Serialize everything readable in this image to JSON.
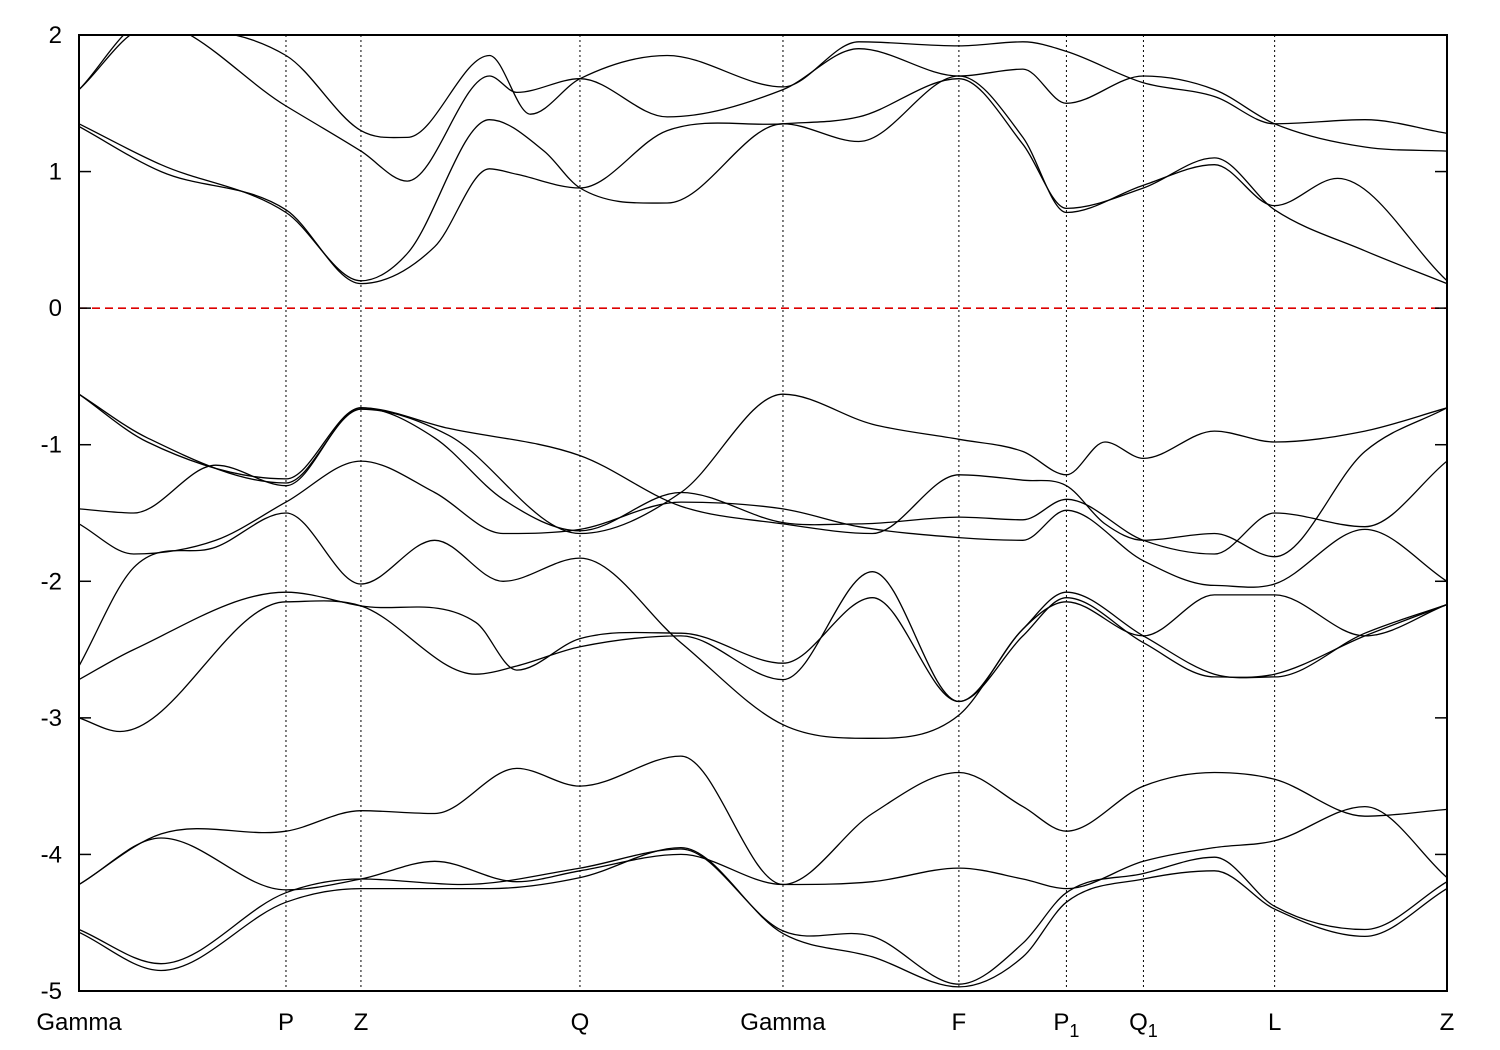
{
  "chart_data": {
    "type": "line",
    "title": "",
    "xlabel": "",
    "ylabel": "",
    "ylim": [
      -5,
      2
    ],
    "yticks": [
      -5,
      -4,
      -3,
      -2,
      -1,
      0,
      1,
      2
    ],
    "ytick_labels": [
      "-5",
      "-4",
      "-3",
      "-2",
      "-1",
      "0",
      "1",
      "2"
    ],
    "xlim": [
      0,
      1
    ],
    "kpoints": [
      {
        "label": "Gamma",
        "sub": "",
        "x": 0.0
      },
      {
        "label": "P",
        "sub": "",
        "x": 0.1513
      },
      {
        "label": "Z",
        "sub": "",
        "x": 0.2061
      },
      {
        "label": "Q",
        "sub": "",
        "x": 0.3662
      },
      {
        "label": "Gamma",
        "sub": "",
        "x": 0.5146
      },
      {
        "label": "F",
        "sub": "",
        "x": 0.6432
      },
      {
        "label": "P",
        "sub": "1",
        "x": 0.7218
      },
      {
        "label": "Q",
        "sub": "1",
        "x": 0.7781
      },
      {
        "label": "L",
        "sub": "",
        "x": 0.874
      },
      {
        "label": "Z",
        "sub": "",
        "x": 1.0
      }
    ],
    "fermi_level": 0,
    "grid": "vertical dotted lines at k-points",
    "colors": {
      "bands": "#000000",
      "fermi": "#dd0000"
    },
    "bands": [
      {
        "name": "",
        "x": [
          0,
          0.06,
          0.1513,
          0.2061,
          0.3,
          0.3662,
          0.44,
          0.5146,
          0.58,
          0.6432,
          0.69,
          0.7218,
          0.7781,
          0.83,
          0.874,
          0.94,
          1.0
        ],
        "y": [
          -4.57,
          -4.85,
          -4.35,
          -4.25,
          -4.25,
          -4.17,
          -3.95,
          -4.58,
          -4.75,
          -4.97,
          -4.75,
          -4.35,
          -4.18,
          -4.12,
          -4.4,
          -4.6,
          -4.25
        ]
      },
      {
        "name": "",
        "x": [
          0,
          0.06,
          0.1513,
          0.2061,
          0.28,
          0.3662,
          0.44,
          0.5146,
          0.58,
          0.6432,
          0.69,
          0.7218,
          0.7781,
          0.83,
          0.874,
          0.94,
          1.0
        ],
        "y": [
          -4.55,
          -4.8,
          -4.28,
          -4.18,
          -4.22,
          -4.1,
          -3.96,
          -4.56,
          -4.6,
          -4.95,
          -4.65,
          -4.28,
          -4.14,
          -4.02,
          -4.38,
          -4.55,
          -4.2
        ]
      },
      {
        "name": "",
        "x": [
          0,
          0.06,
          0.1513,
          0.2061,
          0.26,
          0.32,
          0.3662,
          0.44,
          0.5146,
          0.58,
          0.6432,
          0.69,
          0.7218,
          0.7781,
          0.83,
          0.874,
          0.94,
          1.0
        ],
        "y": [
          -4.22,
          -3.85,
          -3.83,
          -3.68,
          -3.7,
          -3.37,
          -3.5,
          -3.28,
          -4.22,
          -4.2,
          -4.1,
          -4.18,
          -4.25,
          -4.05,
          -3.95,
          -3.9,
          -3.65,
          -4.17
        ]
      },
      {
        "name": "",
        "x": [
          0,
          0.06,
          0.1513,
          0.2061,
          0.26,
          0.32,
          0.3662,
          0.44,
          0.5146,
          0.58,
          0.6432,
          0.69,
          0.7218,
          0.7781,
          0.83,
          0.874,
          0.94,
          1.0
        ],
        "y": [
          -4.22,
          -3.88,
          -4.26,
          -4.18,
          -4.05,
          -4.2,
          -4.12,
          -4.0,
          -4.22,
          -3.7,
          -3.4,
          -3.65,
          -3.83,
          -3.5,
          -3.4,
          -3.45,
          -3.72,
          -3.67
        ]
      },
      {
        "name": "",
        "x": [
          0,
          0.03,
          0.1513,
          0.2061,
          0.29,
          0.32,
          0.3662,
          0.44,
          0.5146,
          0.58,
          0.6432,
          0.69,
          0.7218,
          0.7781,
          0.83,
          0.874,
          0.94,
          1.0
        ],
        "y": [
          -3.0,
          -3.1,
          -2.15,
          -2.18,
          -2.68,
          -2.62,
          -2.48,
          -2.4,
          -2.72,
          -1.93,
          -2.88,
          -2.4,
          -2.12,
          -2.45,
          -2.7,
          -2.68,
          -2.4,
          -2.17
        ]
      },
      {
        "name": "",
        "x": [
          0,
          0.04,
          0.1513,
          0.2061,
          0.29,
          0.32,
          0.3662,
          0.44,
          0.5146,
          0.58,
          0.6432,
          0.69,
          0.7218,
          0.7781,
          0.83,
          0.874,
          0.94,
          1.0
        ],
        "y": [
          -2.72,
          -2.5,
          -2.08,
          -2.18,
          -2.3,
          -2.65,
          -2.42,
          -2.38,
          -2.6,
          -2.12,
          -2.88,
          -2.35,
          -2.08,
          -2.4,
          -2.68,
          -2.7,
          -2.38,
          -2.17
        ]
      },
      {
        "name": "",
        "x": [
          0,
          0.04,
          0.1,
          0.1513,
          0.2061,
          0.26,
          0.31,
          0.3662,
          0.44,
          0.5146,
          0.58,
          0.6432,
          0.69,
          0.7218,
          0.7781,
          0.83,
          0.874,
          0.94,
          1.0
        ],
        "y": [
          -2.62,
          -1.9,
          -1.75,
          -1.5,
          -2.02,
          -1.7,
          -2.0,
          -1.83,
          -2.45,
          -3.05,
          -3.15,
          -2.98,
          -2.35,
          -2.15,
          -2.4,
          -2.1,
          -2.1,
          -2.4,
          -2.17
        ]
      },
      {
        "name": "",
        "x": [
          0,
          0.04,
          0.1,
          0.1513,
          0.2061,
          0.26,
          0.31,
          0.3662,
          0.44,
          0.5146,
          0.57,
          0.6432,
          0.69,
          0.7218,
          0.7781,
          0.83,
          0.874,
          0.94,
          1.0
        ],
        "y": [
          -1.58,
          -1.8,
          -1.7,
          -1.42,
          -1.12,
          -1.35,
          -1.65,
          -1.62,
          -1.42,
          -1.47,
          -1.6,
          -1.68,
          -1.7,
          -1.48,
          -1.85,
          -2.03,
          -2.02,
          -1.62,
          -2.0
        ]
      },
      {
        "name": "",
        "x": [
          0,
          0.04,
          0.1,
          0.1513,
          0.2061,
          0.26,
          0.31,
          0.3662,
          0.44,
          0.5146,
          0.57,
          0.6432,
          0.69,
          0.7218,
          0.7781,
          0.83,
          0.874,
          0.94,
          1.0
        ],
        "y": [
          -1.47,
          -1.5,
          -1.15,
          -1.3,
          -0.73,
          -0.95,
          -1.4,
          -1.63,
          -1.35,
          -1.57,
          -1.58,
          -1.53,
          -1.55,
          -1.4,
          -1.7,
          -1.8,
          -1.5,
          -1.6,
          -1.12
        ]
      },
      {
        "name": "",
        "x": [
          0,
          0.05,
          0.1513,
          0.2061,
          0.27,
          0.3662,
          0.44,
          0.5146,
          0.58,
          0.6432,
          0.69,
          0.7218,
          0.75,
          0.7781,
          0.83,
          0.874,
          0.94,
          1.0
        ],
        "y": [
          -0.63,
          -0.98,
          -1.25,
          -0.73,
          -0.88,
          -1.08,
          -1.45,
          -1.58,
          -1.65,
          -1.22,
          -1.26,
          -1.3,
          -1.58,
          -1.7,
          -1.65,
          -1.82,
          -1.05,
          -0.73
        ]
      },
      {
        "name": "",
        "x": [
          0,
          0.05,
          0.1513,
          0.2061,
          0.27,
          0.3662,
          0.44,
          0.5146,
          0.58,
          0.6432,
          0.69,
          0.7218,
          0.75,
          0.7781,
          0.83,
          0.874,
          0.94,
          1.0
        ],
        "y": [
          -0.63,
          -0.95,
          -1.28,
          -0.74,
          -0.93,
          -1.65,
          -1.35,
          -0.63,
          -0.85,
          -0.96,
          -1.05,
          -1.22,
          -0.98,
          -1.1,
          -0.9,
          -0.98,
          -0.9,
          -0.73
        ]
      },
      {
        "name": "",
        "x": [
          0,
          0.06,
          0.1513,
          0.2061,
          0.26,
          0.3,
          0.32,
          0.3662,
          0.43,
          0.5146,
          0.57,
          0.6432,
          0.69,
          0.7218,
          0.7781,
          0.83,
          0.874,
          0.94,
          1.0
        ],
        "y": [
          1.33,
          1.0,
          0.72,
          0.18,
          0.45,
          1.02,
          0.98,
          0.88,
          1.3,
          1.35,
          1.4,
          1.68,
          1.2,
          0.73,
          0.88,
          1.1,
          0.72,
          0.42,
          0.18
        ]
      },
      {
        "name": "",
        "x": [
          0,
          0.06,
          0.1513,
          0.2061,
          0.24,
          0.3,
          0.34,
          0.3662,
          0.43,
          0.5146,
          0.57,
          0.6432,
          0.69,
          0.7218,
          0.7781,
          0.83,
          0.874,
          0.92,
          1.0
        ],
        "y": [
          1.35,
          1.05,
          0.7,
          0.2,
          0.4,
          1.38,
          1.15,
          0.88,
          0.77,
          1.35,
          1.22,
          1.7,
          1.25,
          0.7,
          0.9,
          1.05,
          0.75,
          0.95,
          0.2
        ]
      },
      {
        "name": "",
        "x": [
          0,
          0.05,
          0.1513,
          0.2061,
          0.24,
          0.3,
          0.32,
          0.3662,
          0.43,
          0.5146,
          0.57,
          0.6432,
          0.69,
          0.7218,
          0.7781,
          0.83,
          0.874,
          0.94,
          1.0
        ],
        "y": [
          1.6,
          2.1,
          1.48,
          1.15,
          0.93,
          1.7,
          1.58,
          1.68,
          1.4,
          1.6,
          1.9,
          1.7,
          1.75,
          1.5,
          1.7,
          1.6,
          1.35,
          1.18,
          1.15
        ]
      },
      {
        "name": "",
        "x": [
          0,
          0.05,
          0.1513,
          0.2061,
          0.24,
          0.3,
          0.33,
          0.3662,
          0.43,
          0.5146,
          0.57,
          0.6432,
          0.69,
          0.7218,
          0.7781,
          0.83,
          0.874,
          0.94,
          1.0
        ],
        "y": [
          1.6,
          2.05,
          1.85,
          1.3,
          1.25,
          1.85,
          1.42,
          1.68,
          1.85,
          1.62,
          1.95,
          1.92,
          1.95,
          1.88,
          1.65,
          1.55,
          1.35,
          1.38,
          1.28
        ]
      }
    ]
  }
}
